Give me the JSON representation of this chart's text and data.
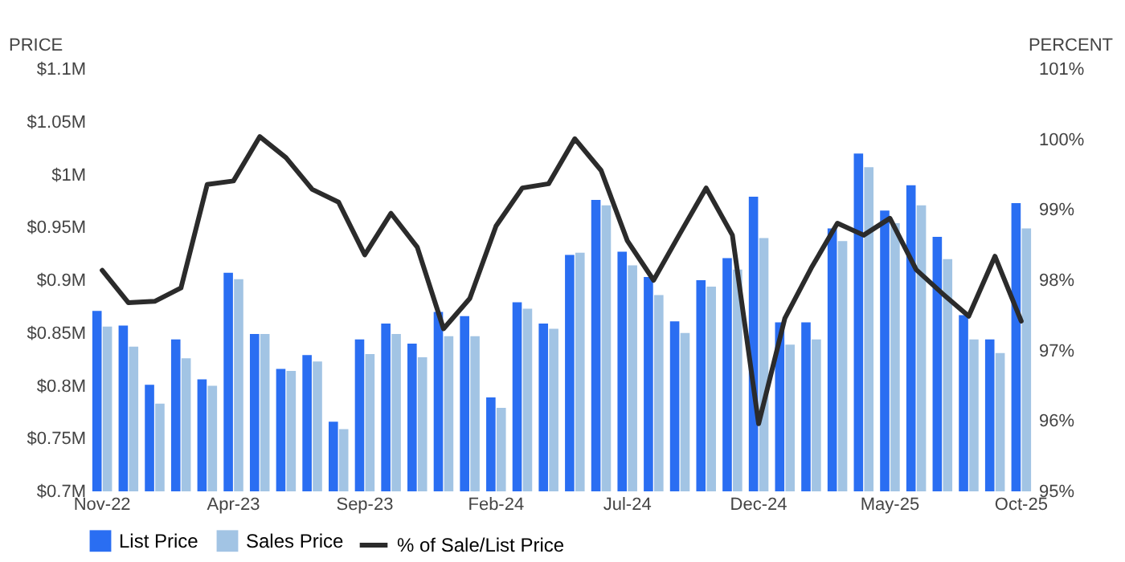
{
  "chart_data": {
    "type": "bar",
    "categories": [
      "Nov-22",
      null,
      null,
      null,
      null,
      "Apr-23",
      null,
      null,
      null,
      null,
      "Sep-23",
      null,
      null,
      null,
      null,
      "Feb-24",
      null,
      null,
      null,
      null,
      "Jul-24",
      null,
      null,
      null,
      null,
      "Dec-24",
      null,
      null,
      null,
      null,
      "May-25",
      null,
      null,
      null,
      null,
      "Oct-25"
    ],
    "series": [
      {
        "name": "List Price",
        "color": "#2a6ef2",
        "values": [
          0.871,
          0.857,
          0.801,
          0.844,
          0.806,
          0.907,
          0.849,
          0.816,
          0.829,
          0.766,
          0.844,
          0.859,
          0.84,
          0.87,
          0.866,
          0.789,
          0.879,
          0.859,
          0.924,
          0.976,
          0.927,
          0.903,
          0.861,
          0.9,
          0.921,
          0.979,
          0.86,
          0.86,
          0.949,
          1.02,
          0.966,
          0.99,
          0.941,
          0.867,
          0.844,
          0.973
        ]
      },
      {
        "name": "Sales Price",
        "color": "#a2c4e4",
        "values": [
          0.856,
          0.837,
          0.783,
          0.826,
          0.8,
          0.901,
          0.849,
          0.814,
          0.823,
          0.759,
          0.83,
          0.849,
          0.827,
          0.847,
          0.847,
          0.779,
          0.873,
          0.854,
          0.926,
          0.971,
          0.914,
          0.886,
          0.85,
          0.894,
          0.91,
          0.94,
          0.839,
          0.844,
          0.937,
          1.007,
          0.954,
          0.971,
          0.92,
          0.844,
          0.831,
          0.949
        ]
      },
      {
        "name": "% of Sale/List Price",
        "type": "line",
        "axis": "y2",
        "color": "#2b2b2b",
        "values": [
          98.14,
          97.68,
          97.7,
          97.89,
          99.36,
          99.41,
          100.04,
          99.74,
          99.29,
          99.11,
          98.36,
          98.95,
          98.47,
          97.31,
          97.74,
          98.77,
          99.31,
          99.37,
          100.01,
          99.56,
          98.56,
          98.0,
          98.66,
          99.31,
          98.64,
          95.96,
          97.46,
          98.17,
          98.81,
          98.64,
          98.88,
          98.15,
          97.81,
          97.49,
          98.34,
          97.42
        ]
      }
    ],
    "ylabel": "PRICE",
    "y2label": "PERCENT",
    "ylim": [
      0.7,
      1.1
    ],
    "yticks": [
      {
        "value": 0.7,
        "label": "$0.7M"
      },
      {
        "value": 0.75,
        "label": "$0.75M"
      },
      {
        "value": 0.8,
        "label": "$0.8M"
      },
      {
        "value": 0.85,
        "label": "$0.85M"
      },
      {
        "value": 0.9,
        "label": "$0.9M"
      },
      {
        "value": 0.95,
        "label": "$0.95M"
      },
      {
        "value": 1,
        "label": "$1M"
      },
      {
        "value": 1.05,
        "label": "$1.05M"
      },
      {
        "value": 1.1,
        "label": "$1.1M"
      }
    ],
    "y2lim": [
      95,
      101
    ],
    "y2ticks": [
      {
        "value": 95,
        "label": "95%"
      },
      {
        "value": 96,
        "label": "96%"
      },
      {
        "value": 97,
        "label": "97%"
      },
      {
        "value": 98,
        "label": "98%"
      },
      {
        "value": 99,
        "label": "99%"
      },
      {
        "value": 100,
        "label": "100%"
      },
      {
        "value": 101,
        "label": "101%"
      }
    ],
    "legend": "bottom"
  }
}
